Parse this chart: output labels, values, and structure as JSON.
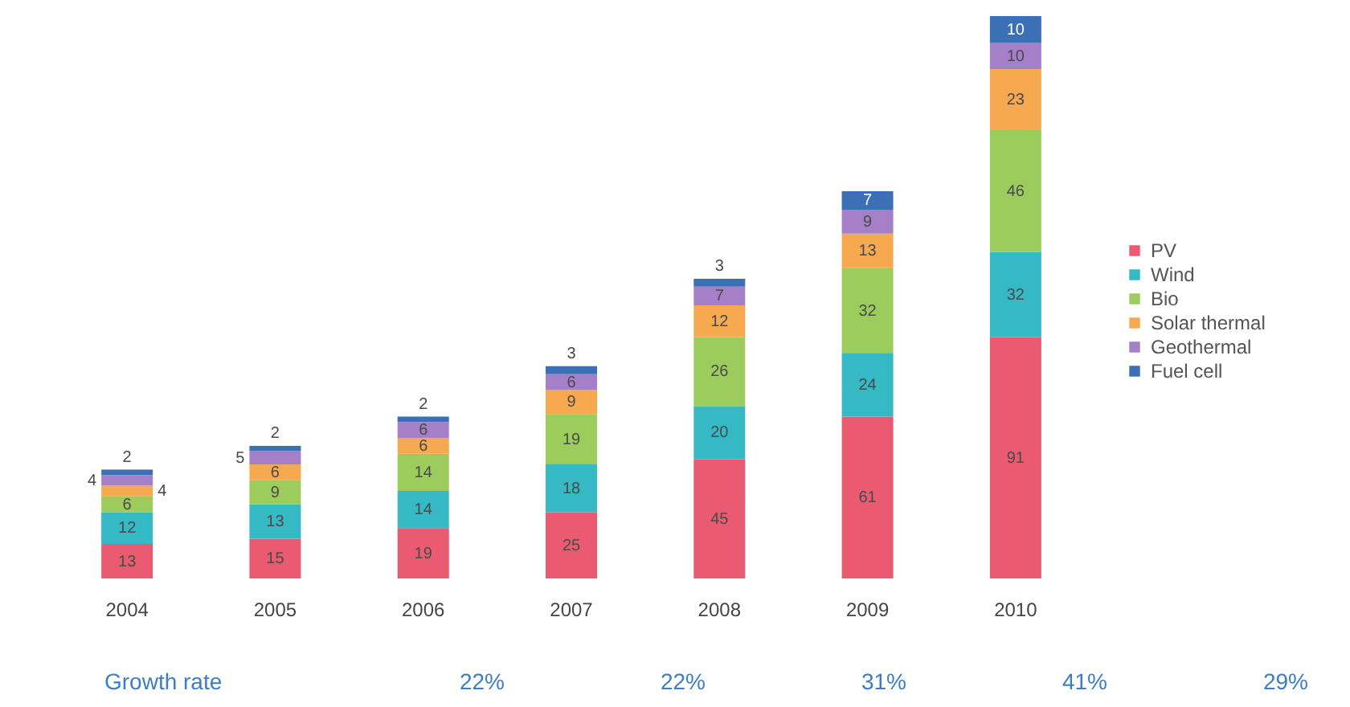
{
  "chart_data": {
    "type": "bar",
    "stacked": true,
    "categories": [
      "2004",
      "2005",
      "2006",
      "2007",
      "2008",
      "2009",
      "2010"
    ],
    "series": [
      {
        "name": "PV",
        "color": "#ea5b72",
        "values": [
          13,
          15,
          19,
          25,
          45,
          61,
          91
        ]
      },
      {
        "name": "Wind",
        "color": "#35b9c4",
        "values": [
          12,
          13,
          14,
          18,
          20,
          24,
          32
        ]
      },
      {
        "name": "Bio",
        "color": "#9ccc5c",
        "values": [
          6,
          9,
          14,
          19,
          26,
          32,
          46
        ]
      },
      {
        "name": "Solar thermal",
        "color": "#f6a94e",
        "values": [
          4,
          6,
          6,
          9,
          12,
          13,
          23
        ]
      },
      {
        "name": "Geothermal",
        "color": "#a57fc8",
        "values": [
          4,
          5,
          6,
          6,
          7,
          9,
          10
        ]
      },
      {
        "name": "Fuel cell",
        "color": "#3b6fb6",
        "values": [
          2,
          2,
          2,
          3,
          3,
          7,
          10
        ]
      }
    ],
    "data_labels": true,
    "legend": "right",
    "tick_labels": "x",
    "annotations": [
      "Growth rate",
      "22%",
      "22%",
      "31%",
      "41%",
      "29%"
    ]
  }
}
